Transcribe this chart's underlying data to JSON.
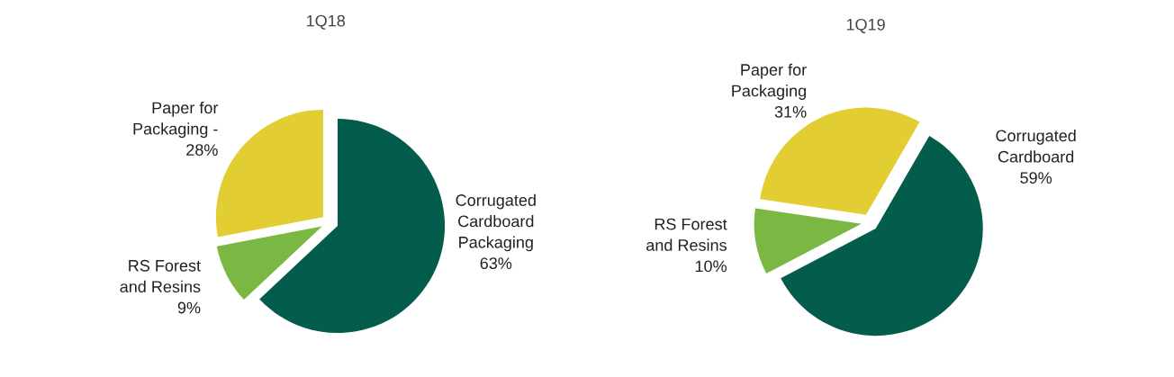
{
  "chart_data": [
    {
      "type": "pie",
      "title": "1Q18",
      "categories": [
        "Corrugated Cardboard Packaging",
        "RS Forest and Resins",
        "Paper for Packaging -"
      ],
      "values": [
        63,
        9,
        28
      ],
      "value_labels": [
        "63%",
        "9%",
        "28%"
      ],
      "colors": [
        "#045c4c",
        "#7ab843",
        "#e2cd33"
      ]
    },
    {
      "type": "pie",
      "title": "1Q19",
      "categories": [
        "Corrugated Cardboard",
        "RS Forest and Resins",
        "Paper for Packaging"
      ],
      "values": [
        59,
        10,
        31
      ],
      "value_labels": [
        "59%",
        "10%",
        "31%"
      ],
      "colors": [
        "#045c4c",
        "#7ab843",
        "#e2cd33"
      ]
    }
  ]
}
